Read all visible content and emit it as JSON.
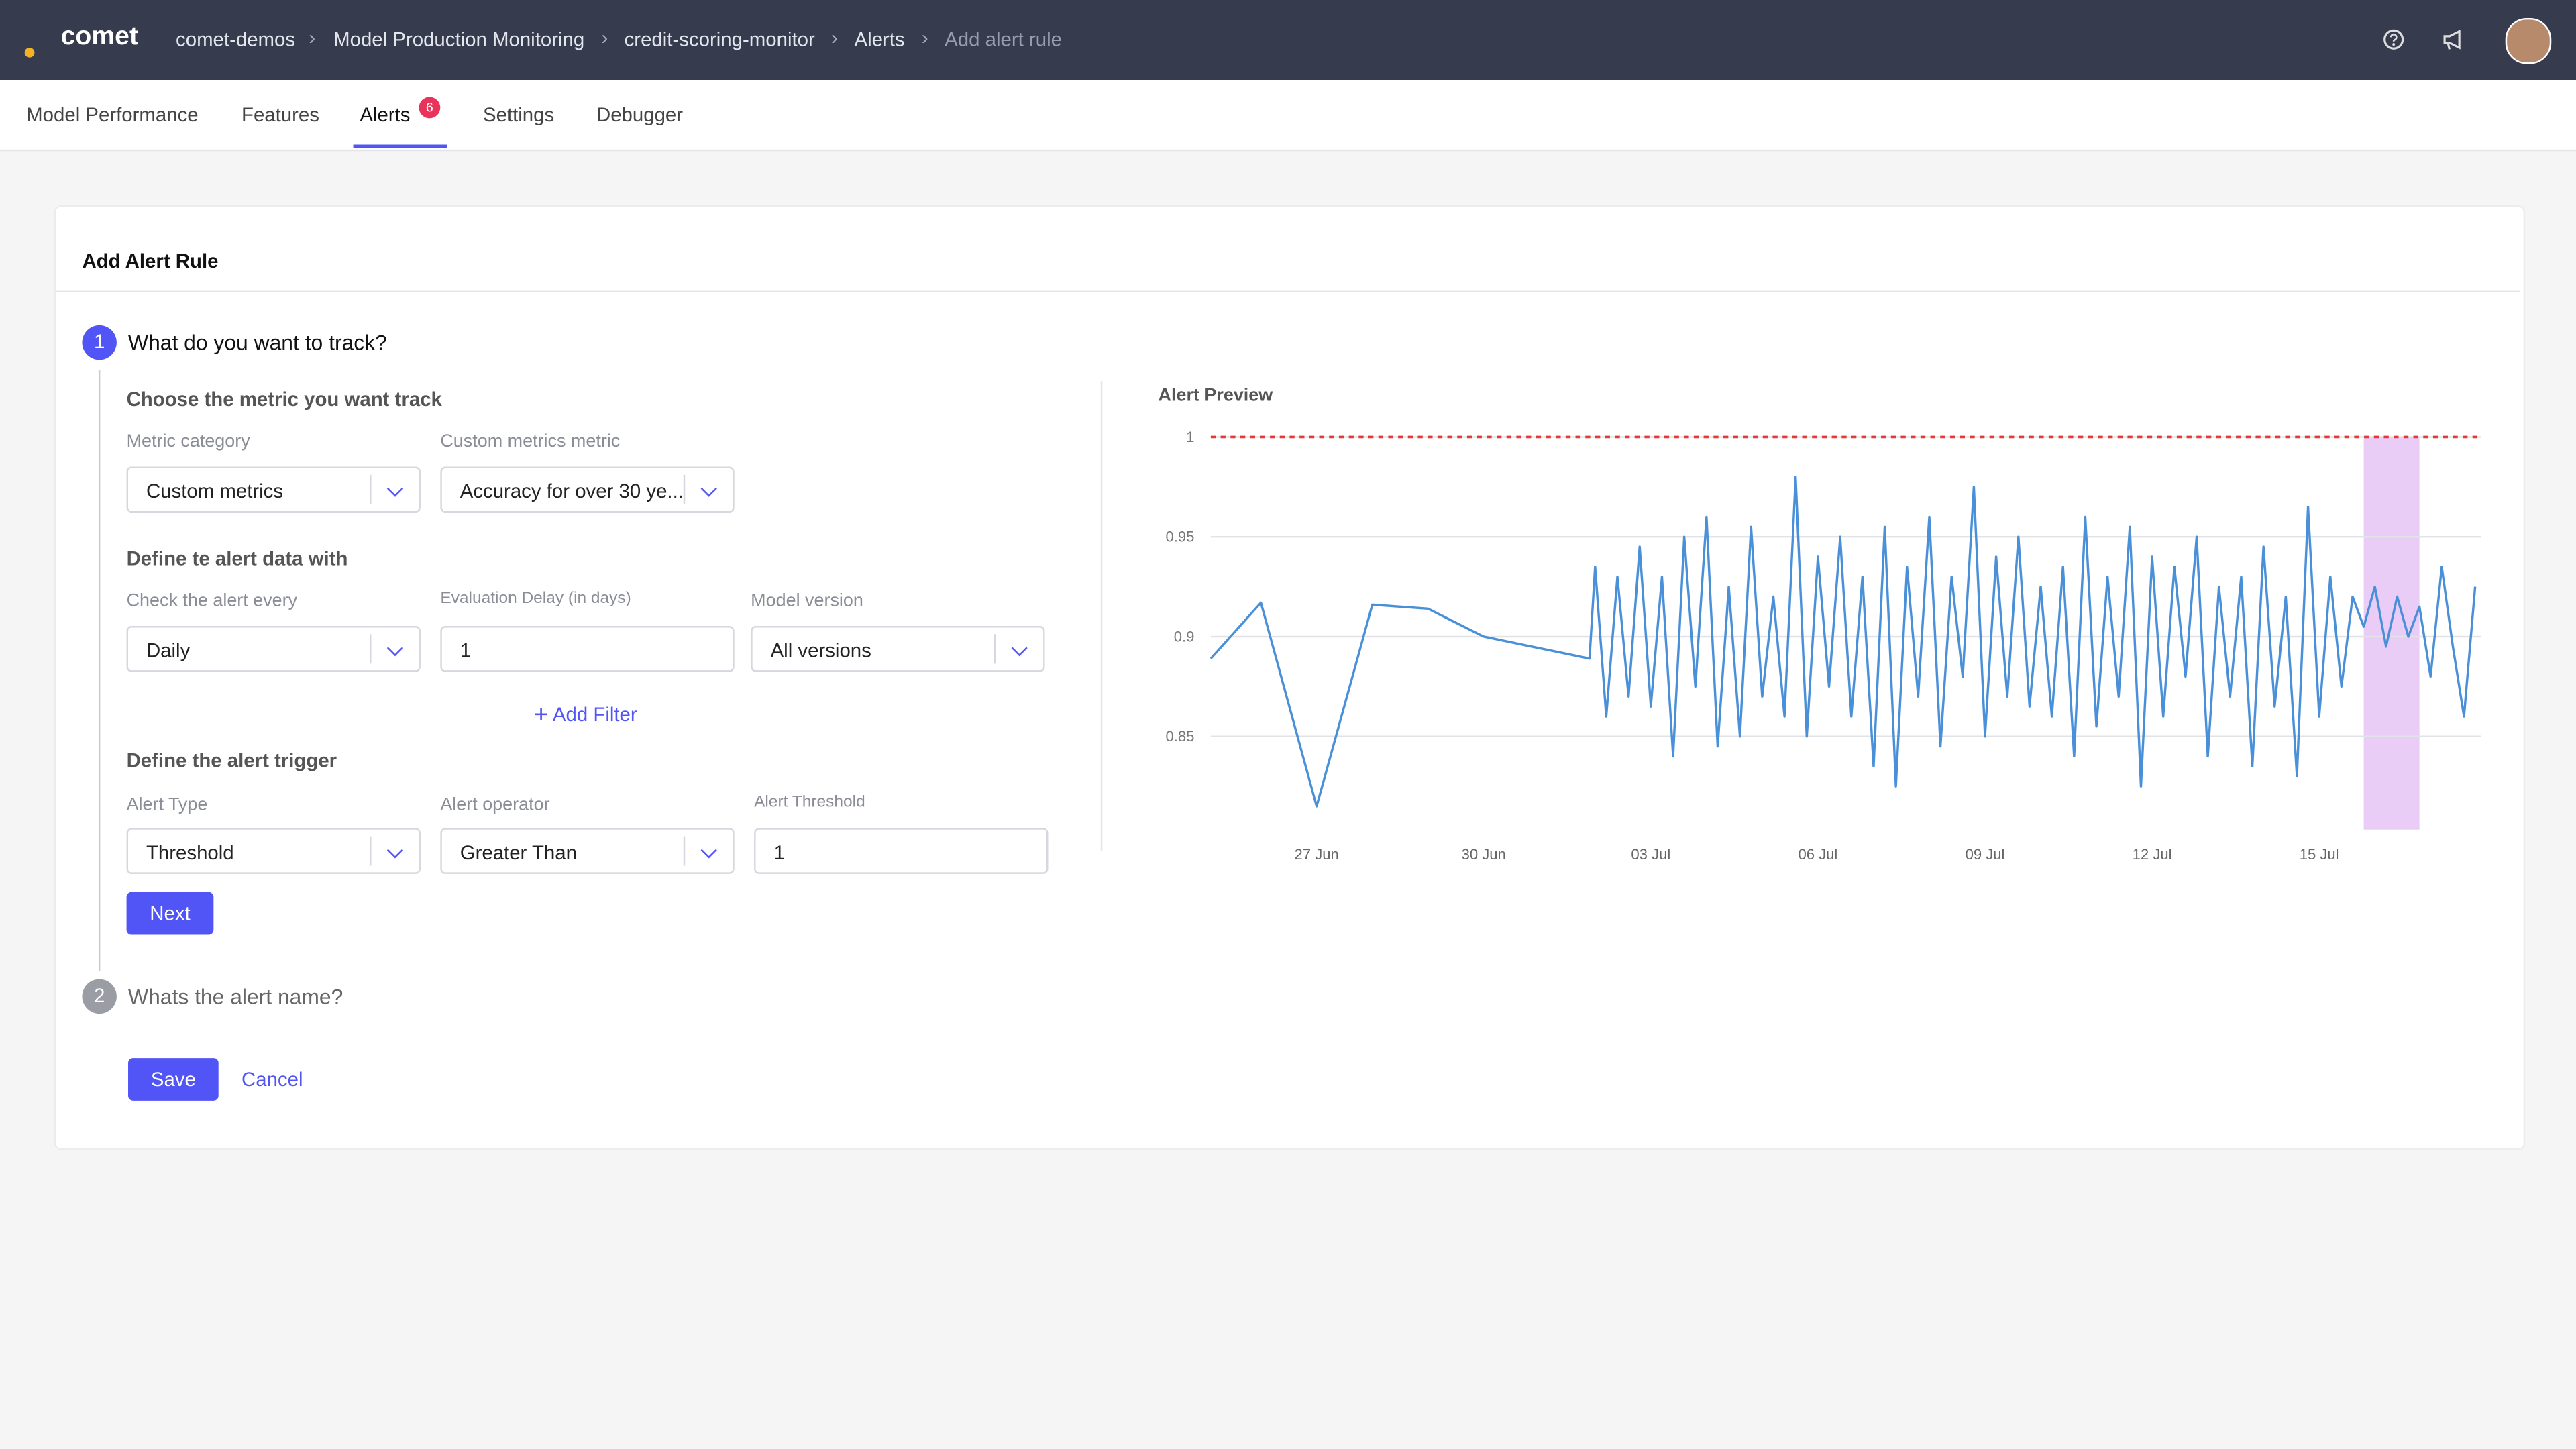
{
  "header": {
    "logo": "comet",
    "breadcrumbs": [
      "comet-demos",
      "Model Production Monitoring",
      "credit-scoring-monitor",
      "Alerts",
      "Add alert rule"
    ]
  },
  "tabs": [
    {
      "label": "Model Performance"
    },
    {
      "label": "Features"
    },
    {
      "label": "Alerts",
      "badge": 6
    },
    {
      "label": "Settings"
    },
    {
      "label": "Debugger"
    }
  ],
  "form": {
    "title": "Add Alert Rule",
    "step1": {
      "number": 1,
      "title": "What do you want to track?",
      "section1": "Choose the metric you want track",
      "metric_category_label": "Metric category",
      "metric_category": "Custom metrics",
      "custom_metric_label": "Custom metrics metric",
      "custom_metric": "Accuracy for over 30 ye...",
      "section2": "Define te alert data with",
      "check_label": "Check the alert every",
      "check": "Daily",
      "delay_label": "Evaluation Delay (in days)",
      "delay": "1",
      "version_label": "Model version",
      "version": "All versions",
      "add_filter": "Add Filter",
      "section3": "Define the alert trigger",
      "type_label": "Alert Type",
      "type": "Threshold",
      "operator_label": "Alert operator",
      "operator": "Greater Than",
      "threshold_label": "Alert Threshold",
      "threshold": "1",
      "next": "Next"
    },
    "step2": {
      "number": 2,
      "title": "Whats the alert name?"
    },
    "save": "Save",
    "cancel": "Cancel"
  },
  "chart_data": {
    "type": "line",
    "title": "Alert Preview",
    "x": [
      25.1,
      26.0,
      27.0,
      28.0,
      29.0,
      30.0,
      31.9,
      32.0,
      32.2,
      32.4,
      32.6,
      32.8,
      33.0,
      33.2,
      33.4,
      33.6,
      33.8,
      34.0,
      34.2,
      34.4,
      34.6,
      34.8,
      35.0,
      35.2,
      35.4,
      35.6,
      35.8,
      36.0,
      36.2,
      36.4,
      36.6,
      36.8,
      37.0,
      37.2,
      37.4,
      37.6,
      37.8,
      38.0,
      38.2,
      38.4,
      38.6,
      38.8,
      39.0,
      39.2,
      39.4,
      39.6,
      39.8,
      40.0,
      40.2,
      40.4,
      40.6,
      40.8,
      41.0,
      41.2,
      41.4,
      41.6,
      41.8,
      42.0,
      42.2,
      42.4,
      42.6,
      42.8,
      43.0,
      43.2,
      43.4,
      43.6,
      43.8,
      44.0,
      44.2,
      44.4,
      44.6,
      44.8,
      45.0,
      45.2,
      45.4,
      45.6,
      45.8,
      46.0,
      46.2,
      46.4,
      46.6,
      46.8,
      47.0,
      47.2,
      47.4,
      47.6,
      47.8
    ],
    "series": [
      {
        "color": "#4a90d9",
        "values": [
          0.889,
          0.917,
          0.815,
          0.916,
          0.914,
          0.9,
          0.889,
          0.935,
          0.86,
          0.93,
          0.87,
          0.945,
          0.865,
          0.93,
          0.84,
          0.95,
          0.875,
          0.96,
          0.845,
          0.925,
          0.85,
          0.955,
          0.87,
          0.92,
          0.86,
          0.98,
          0.85,
          0.94,
          0.875,
          0.95,
          0.86,
          0.93,
          0.835,
          0.955,
          0.825,
          0.935,
          0.87,
          0.96,
          0.845,
          0.93,
          0.88,
          0.975,
          0.85,
          0.94,
          0.87,
          0.95,
          0.865,
          0.925,
          0.86,
          0.935,
          0.84,
          0.96,
          0.855,
          0.93,
          0.87,
          0.955,
          0.825,
          0.94,
          0.86,
          0.935,
          0.88,
          0.95,
          0.84,
          0.925,
          0.87,
          0.93,
          0.835,
          0.945,
          0.865,
          0.92,
          0.83,
          0.965,
          0.86,
          0.93,
          0.875,
          0.92,
          0.905,
          0.925,
          0.895,
          0.92,
          0.9,
          0.915,
          0.88,
          0.935,
          0.895,
          0.86,
          0.925
        ]
      }
    ],
    "xlim": [
      25.1,
      47.9
    ],
    "ylim": [
      0.8,
      1
    ],
    "xticks": [
      {
        "value": 27,
        "label": "27 Jun"
      },
      {
        "value": 30,
        "label": "30 Jun"
      },
      {
        "value": 33,
        "label": "03 Jul"
      },
      {
        "value": 36,
        "label": "06 Jul"
      },
      {
        "value": 39,
        "label": "09 Jul"
      },
      {
        "value": 42,
        "label": "12 Jul"
      },
      {
        "value": 45,
        "label": "15 Jul"
      }
    ],
    "yticks": [
      0.85,
      0.9,
      0.95,
      1
    ],
    "grid": true,
    "threshold": 1,
    "threshold_color": "#e53935",
    "highlight": [
      45.8,
      46.8
    ],
    "highlight_color": "#e8c8f6"
  }
}
